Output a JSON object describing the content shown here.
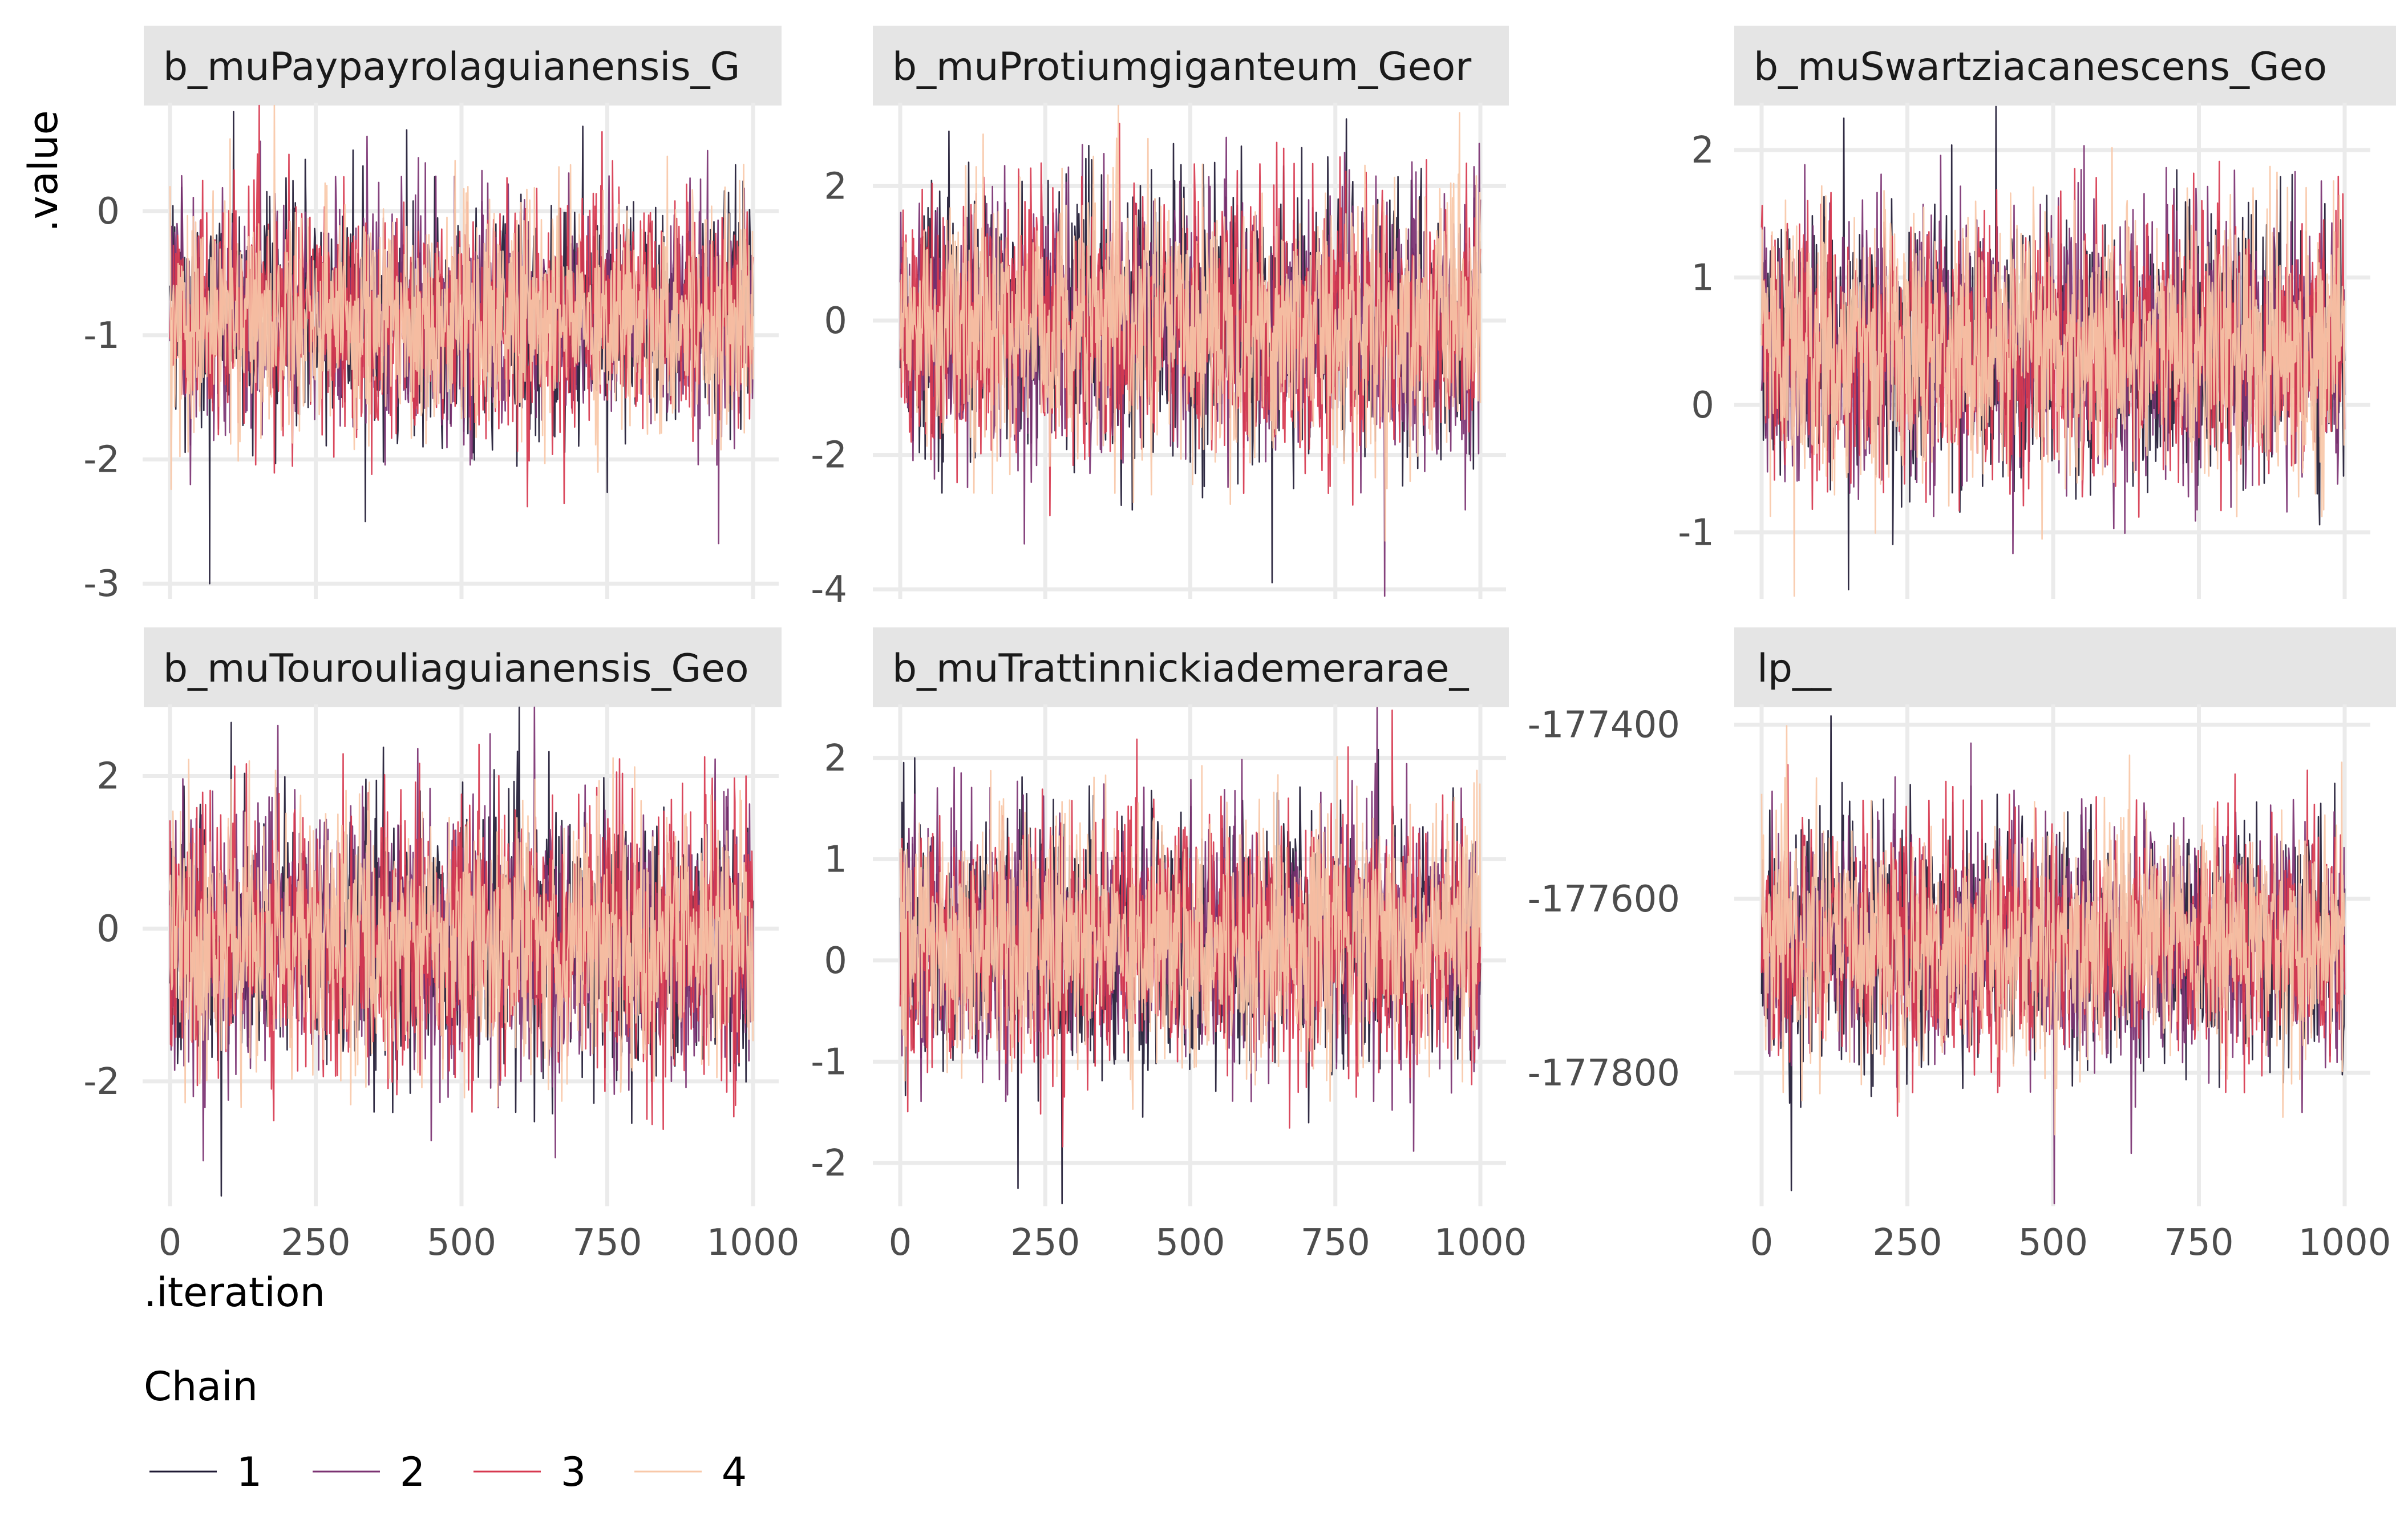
{
  "chart_data": {
    "type": "line",
    "x_axis_label": ".iteration",
    "y_axis_label": ".value",
    "x_ticks": [
      0,
      250,
      500,
      750,
      1000
    ],
    "x_range": [
      0,
      1000
    ],
    "grid": true,
    "legend": {
      "title": "Chain",
      "placement": "bottom-left",
      "entries": [
        {
          "label": "1",
          "color": "#1f1a34"
        },
        {
          "label": "2",
          "color": "#7b3272"
        },
        {
          "label": "3",
          "color": "#d7384f"
        },
        {
          "label": "4",
          "color": "#f8c8a8"
        }
      ]
    },
    "series_draw_order": [
      "1",
      "2",
      "3",
      "4"
    ],
    "panels": [
      {
        "title": "b_muPaypayrolaguianensis_G",
        "y_ticks": [
          0,
          -1,
          -2,
          -3
        ],
        "y_tick_labels": [
          "0",
          "-1",
          "-2",
          "-3"
        ],
        "y_range": [
          -3.1,
          0.85
        ],
        "chain_mean": -0.85,
        "chain_sd": 0.45,
        "chain_extremes": [
          -3.0,
          0.8
        ]
      },
      {
        "title": "b_muProtiumgiganteum_Geor",
        "y_ticks": [
          2,
          0,
          -2,
          -4
        ],
        "y_tick_labels": [
          "2",
          "0",
          "-2",
          "-4"
        ],
        "y_range": [
          -4.1,
          3.2
        ],
        "chain_mean": -0.05,
        "chain_sd": 0.95,
        "chain_extremes": [
          -3.9,
          3.0
        ]
      },
      {
        "title": "b_muSwartziacanescens_Geo",
        "y_ticks": [
          2,
          1,
          0,
          -1
        ],
        "y_tick_labels": [
          "2",
          "1",
          "0",
          "-1"
        ],
        "y_range": [
          -1.5,
          2.35
        ],
        "chain_mean": 0.45,
        "chain_sd": 0.5,
        "chain_extremes": [
          -1.45,
          2.25
        ]
      },
      {
        "title": "b_muTourouliaguianensis_Geo",
        "y_ticks": [
          2,
          0,
          -2
        ],
        "y_tick_labels": [
          "2",
          "0",
          "-2"
        ],
        "y_range": [
          -3.6,
          2.9
        ],
        "chain_mean": -0.15,
        "chain_sd": 0.85,
        "chain_extremes": [
          -3.5,
          2.7
        ]
      },
      {
        "title": "b_muTrattinnickiademerarae_",
        "y_ticks": [
          2,
          1,
          0,
          -1,
          -2
        ],
        "y_tick_labels": [
          "2",
          "1",
          "0",
          "-1",
          "-2"
        ],
        "y_range": [
          -2.4,
          2.5
        ],
        "chain_mean": 0.2,
        "chain_sd": 0.6,
        "chain_extremes": [
          -2.25,
          2.0
        ]
      },
      {
        "title": "lp__",
        "y_ticks": [
          -177400,
          -177600,
          -177800
        ],
        "y_tick_labels": [
          "-177400",
          "-177600",
          "-177800"
        ],
        "y_range": [
          -177950,
          -177380
        ],
        "chain_mean": -177650,
        "chain_sd": 65,
        "chain_extremes": [
          -177935,
          -177390
        ]
      }
    ]
  }
}
